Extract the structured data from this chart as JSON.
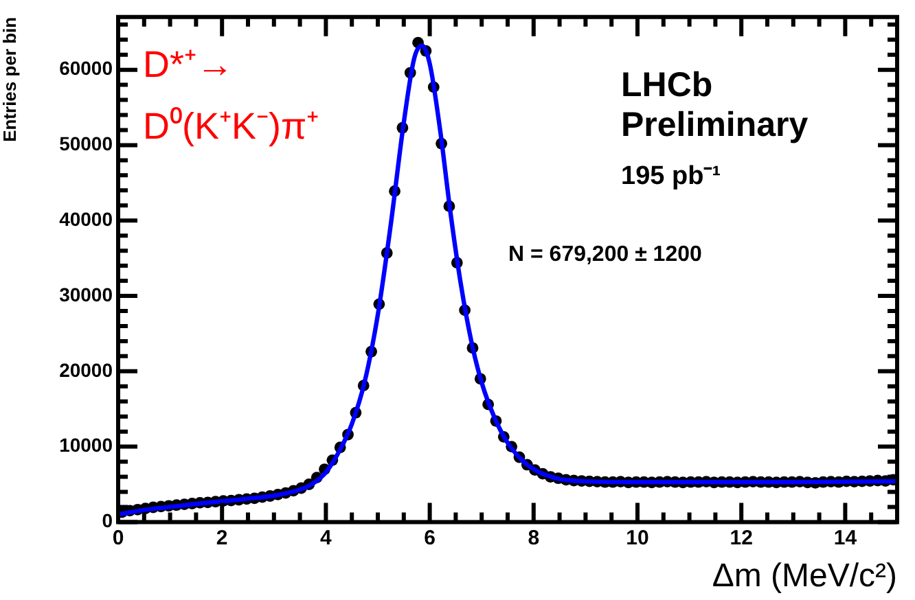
{
  "chart_data": {
    "type": "scatter",
    "xlabel": "Δm (MeV/c²)",
    "ylabel": "Entries per bin",
    "annotations": [
      "D*⁺→",
      "D⁰(K⁺K⁻)π⁺",
      "LHCb",
      "Preliminary",
      "195 pb⁻¹",
      "N = 679,200 ± 1200"
    ],
    "xlim": [
      0,
      15
    ],
    "ylim": [
      0,
      67000
    ],
    "xticks": [
      0,
      {
        "value": 0.5,
        "label": null
      },
      {
        "value": 1,
        "label": null
      },
      {
        "value": 1.5,
        "label": null
      },
      2,
      {
        "value": 2.5,
        "label": null
      },
      {
        "value": 3,
        "label": null
      },
      {
        "value": 3.5,
        "label": null
      },
      4,
      {
        "value": 4.5,
        "label": null
      },
      {
        "value": 5,
        "label": null
      },
      {
        "value": 5.5,
        "label": null
      },
      6,
      {
        "value": 6.5,
        "label": null
      },
      {
        "value": 7,
        "label": null
      },
      {
        "value": 7.5,
        "label": null
      },
      8,
      {
        "value": 8.5,
        "label": null
      },
      {
        "value": 9,
        "label": null
      },
      {
        "value": 9.5,
        "label": null
      },
      10,
      {
        "value": 10.5,
        "label": null
      },
      {
        "value": 11,
        "label": null
      },
      {
        "value": 11.5,
        "label": null
      },
      12,
      {
        "value": 12.5,
        "label": null
      },
      {
        "value": 13,
        "label": null
      },
      {
        "value": 13.5,
        "label": null
      },
      14,
      {
        "value": 14.5,
        "label": null
      }
    ],
    "yticks": [
      0,
      {
        "value": 2000,
        "label": null
      },
      {
        "value": 4000,
        "label": null
      },
      {
        "value": 6000,
        "label": null
      },
      {
        "value": 8000,
        "label": null
      },
      10000,
      {
        "value": 12000,
        "label": null
      },
      {
        "value": 14000,
        "label": null
      },
      {
        "value": 16000,
        "label": null
      },
      {
        "value": 18000,
        "label": null
      },
      20000,
      {
        "value": 22000,
        "label": null
      },
      {
        "value": 24000,
        "label": null
      },
      {
        "value": 26000,
        "label": null
      },
      {
        "value": 28000,
        "label": null
      },
      30000,
      {
        "value": 32000,
        "label": null
      },
      {
        "value": 34000,
        "label": null
      },
      {
        "value": 36000,
        "label": null
      },
      {
        "value": 38000,
        "label": null
      },
      40000,
      {
        "value": 42000,
        "label": null
      },
      {
        "value": 44000,
        "label": null
      },
      {
        "value": 46000,
        "label": null
      },
      {
        "value": 48000,
        "label": null
      },
      50000,
      {
        "value": 52000,
        "label": null
      },
      {
        "value": 54000,
        "label": null
      },
      {
        "value": 56000,
        "label": null
      },
      {
        "value": 58000,
        "label": null
      },
      60000,
      {
        "value": 62000,
        "label": null
      },
      {
        "value": 64000,
        "label": null
      },
      {
        "value": 66000,
        "label": null
      }
    ],
    "grid": false,
    "legend": false,
    "series": [
      {
        "marker": "circle",
        "color": "#000000",
        "x": [
          0.075,
          0.225,
          0.375,
          0.525,
          0.675,
          0.825,
          0.975,
          1.125,
          1.275,
          1.425,
          1.575,
          1.725,
          1.875,
          2.025,
          2.175,
          2.325,
          2.475,
          2.625,
          2.775,
          2.925,
          3.075,
          3.225,
          3.375,
          3.525,
          3.675,
          3.825,
          3.975,
          4.125,
          4.275,
          4.425,
          4.575,
          4.725,
          4.875,
          5.025,
          5.175,
          5.325,
          5.475,
          5.625,
          5.775,
          5.925,
          6.075,
          6.225,
          6.375,
          6.525,
          6.675,
          6.825,
          6.975,
          7.125,
          7.275,
          7.425,
          7.575,
          7.725,
          7.875,
          8.025,
          8.175,
          8.325,
          8.475,
          8.625,
          8.775,
          8.925,
          9.075,
          9.225,
          9.375,
          9.525,
          9.675,
          9.825,
          9.975,
          10.125,
          10.275,
          10.425,
          10.575,
          10.725,
          10.875,
          11.025,
          11.175,
          11.325,
          11.475,
          11.625,
          11.775,
          11.925,
          12.075,
          12.225,
          12.375,
          12.525,
          12.675,
          12.825,
          12.975,
          13.125,
          13.275,
          13.425,
          13.575,
          13.725,
          13.875,
          14.025,
          14.175,
          14.325,
          14.475,
          14.625,
          14.775,
          14.925
        ],
        "values": [
          1300,
          1500,
          1650,
          1800,
          1950,
          2050,
          2150,
          2250,
          2350,
          2450,
          2550,
          2600,
          2700,
          2800,
          2850,
          2950,
          3050,
          3150,
          3300,
          3450,
          3650,
          3850,
          4150,
          4500,
          5000,
          5900,
          7000,
          8200,
          9900,
          11600,
          14500,
          18100,
          22600,
          28900,
          35700,
          43900,
          52300,
          59600,
          63600,
          62500,
          57700,
          50200,
          41900,
          34400,
          28100,
          23100,
          19000,
          15600,
          13400,
          11300,
          10000,
          8600,
          7600,
          6900,
          6400,
          6000,
          5800,
          5600,
          5500,
          5450,
          5400,
          5350,
          5300,
          5300,
          5350,
          5250,
          5300,
          5300,
          5250,
          5300,
          5350,
          5300,
          5250,
          5300,
          5300,
          5350,
          5250,
          5300,
          5300,
          5250,
          5300,
          5350,
          5300,
          5300,
          5250,
          5300,
          5300,
          5350,
          5250,
          5200,
          5300,
          5350,
          5300,
          5400,
          5350,
          5400,
          5450,
          5500,
          5450,
          5600
        ]
      },
      {
        "type": "line",
        "marker": "none",
        "line_style": "solid",
        "color": "#0000ff",
        "x": [
          0,
          0.5,
          1,
          1.5,
          2,
          2.5,
          3,
          3.5,
          3.75,
          4,
          4.25,
          4.5,
          4.75,
          5,
          5.25,
          5.5,
          5.7,
          5.85,
          6,
          6.2,
          6.4,
          6.6,
          6.8,
          7,
          7.25,
          7.5,
          7.75,
          8,
          8.25,
          8.5,
          9,
          10,
          11,
          12,
          13,
          14,
          15
        ],
        "values": [
          1000,
          1600,
          2000,
          2400,
          2750,
          3100,
          3500,
          4300,
          5100,
          6600,
          9300,
          13000,
          18700,
          27500,
          39500,
          53000,
          61500,
          63200,
          60800,
          52000,
          41000,
          31500,
          24000,
          18500,
          13800,
          10500,
          8400,
          7000,
          6200,
          5700,
          5400,
          5300,
          5300,
          5300,
          5300,
          5350,
          5400
        ]
      }
    ]
  }
}
